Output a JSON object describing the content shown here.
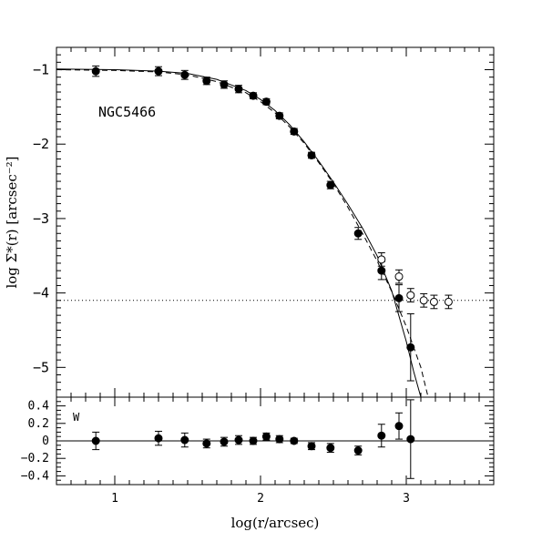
{
  "chart_data": [
    {
      "type": "scatter",
      "panel": "main",
      "title": "",
      "xlabel": "log(r/arcsec)",
      "ylabel": "log Σ*(r) [arcsec⁻²]",
      "xlim": [
        0.6,
        3.6
      ],
      "ylim": [
        -5.4,
        -0.7
      ],
      "xticks": [
        1,
        2,
        3
      ],
      "yticks": [
        -1,
        -2,
        -3,
        -4,
        -5
      ],
      "ytick_labels": [
        "−1",
        "−2",
        "−3",
        "−4",
        "−5"
      ],
      "annotation": "NGC5466",
      "background_level": -4.1,
      "series": [
        {
          "marker": "filled-circle",
          "x": [
            0.87,
            1.3,
            1.48,
            1.63,
            1.75,
            1.85,
            1.95,
            2.04,
            2.13,
            2.23,
            2.35,
            2.48,
            2.67,
            2.83,
            2.95,
            3.03
          ],
          "y": [
            -1.02,
            -1.02,
            -1.07,
            -1.15,
            -1.2,
            -1.26,
            -1.35,
            -1.43,
            -1.62,
            -1.83,
            -2.15,
            -2.55,
            -3.2,
            -3.7,
            -4.07,
            -4.73
          ],
          "yerr": [
            0.07,
            0.06,
            0.06,
            0.05,
            0.05,
            0.05,
            0.04,
            0.04,
            0.04,
            0.04,
            0.04,
            0.05,
            0.08,
            0.12,
            0.18,
            0.45
          ]
        },
        {
          "marker": "open-circle",
          "x": [
            2.83,
            2.95,
            3.03,
            3.12,
            3.19,
            3.29
          ],
          "y": [
            -3.55,
            -3.78,
            -4.03,
            -4.1,
            -4.12,
            -4.12
          ],
          "yerr": [
            0.09,
            0.09,
            0.09,
            0.09,
            0.09,
            0.09
          ]
        }
      ],
      "model_curves": [
        {
          "style": "solid",
          "x": [
            0.6,
            1.0,
            1.3,
            1.5,
            1.7,
            1.9,
            2.0,
            2.1,
            2.2,
            2.3,
            2.4,
            2.5,
            2.6,
            2.7,
            2.8,
            2.9,
            3.0,
            3.05,
            3.1
          ],
          "y": [
            -0.99,
            -1.0,
            -1.02,
            -1.05,
            -1.13,
            -1.28,
            -1.4,
            -1.55,
            -1.74,
            -1.97,
            -2.23,
            -2.51,
            -2.81,
            -3.13,
            -3.5,
            -3.97,
            -4.65,
            -5.05,
            -5.4
          ]
        },
        {
          "style": "dashed",
          "x": [
            0.6,
            1.0,
            1.3,
            1.5,
            1.7,
            1.9,
            2.0,
            2.1,
            2.2,
            2.3,
            2.4,
            2.5,
            2.6,
            2.7,
            2.8,
            2.9,
            3.0,
            3.1,
            3.15
          ],
          "y": [
            -1.0,
            -1.01,
            -1.03,
            -1.07,
            -1.16,
            -1.31,
            -1.43,
            -1.58,
            -1.77,
            -1.99,
            -2.25,
            -2.53,
            -2.85,
            -3.2,
            -3.57,
            -3.98,
            -4.45,
            -5.0,
            -5.4
          ]
        }
      ]
    },
    {
      "type": "scatter",
      "panel": "residuals",
      "xlabel": "log(r/arcsec)",
      "ylabel": "",
      "xlim": [
        0.6,
        3.6
      ],
      "ylim": [
        -0.5,
        0.5
      ],
      "xticks": [
        1,
        2,
        3
      ],
      "xtick_labels": [
        "1",
        "2",
        "3"
      ],
      "yticks": [
        0.4,
        0.2,
        0,
        -0.2,
        -0.4
      ],
      "ytick_labels": [
        "0.4",
        "0.2",
        "0",
        "−0.2",
        "−0.4"
      ],
      "annotation": "W",
      "zero_line": 0,
      "series": [
        {
          "marker": "filled-circle",
          "x": [
            0.87,
            1.3,
            1.48,
            1.63,
            1.75,
            1.85,
            1.95,
            2.04,
            2.13,
            2.23,
            2.35,
            2.48,
            2.67,
            2.83,
            2.95,
            3.03
          ],
          "y": [
            0.0,
            0.03,
            0.01,
            -0.03,
            -0.01,
            0.01,
            0.0,
            0.05,
            0.02,
            0.0,
            -0.06,
            -0.08,
            -0.11,
            0.06,
            0.17,
            0.02
          ],
          "yerr": [
            0.1,
            0.08,
            0.08,
            0.05,
            0.05,
            0.05,
            0.04,
            0.04,
            0.04,
            0.03,
            0.04,
            0.05,
            0.05,
            0.13,
            0.15,
            0.45
          ]
        }
      ]
    }
  ]
}
